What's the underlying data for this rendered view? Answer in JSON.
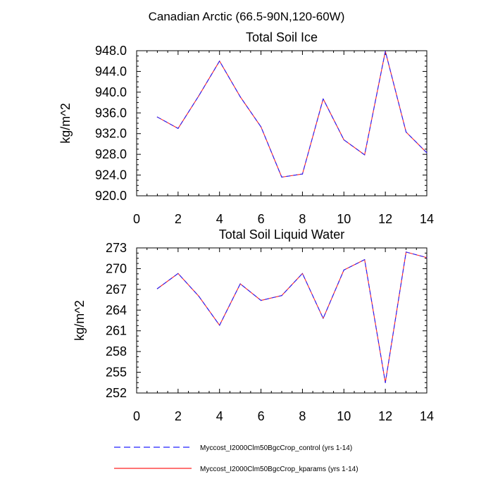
{
  "figure": {
    "title": "Canadian Arctic (66.5-90N,120-60W)"
  },
  "legend": {
    "entries": [
      {
        "label": "Myccost_I2000Clm50BgcCrop_control (yrs 1-14)",
        "color": "#2222ff",
        "style": "dashed"
      },
      {
        "label": "Myccost_I2000Clm50BgcCrop_kparams (yrs 1-14)",
        "color": "#ff2222",
        "style": "solid"
      }
    ]
  },
  "chart_data": [
    {
      "type": "line",
      "title": "Total Soil Ice",
      "xlabel": "",
      "ylabel": "kg/m^2",
      "xlim": [
        0,
        14
      ],
      "ylim": [
        920,
        948
      ],
      "xticks": [
        0,
        2,
        4,
        6,
        8,
        10,
        12,
        14
      ],
      "yticks": [
        920,
        924,
        928,
        932,
        936,
        940,
        944,
        948
      ],
      "ytick_labels": [
        "920.0",
        "924.0",
        "928.0",
        "932.0",
        "936.0",
        "940.0",
        "944.0",
        "948.0"
      ],
      "x": [
        1,
        2,
        3,
        4,
        5,
        6,
        7,
        8,
        9,
        10,
        11,
        12,
        13,
        14
      ],
      "series": [
        {
          "name": "Myccost_I2000Clm50BgcCrop_control (yrs 1-14)",
          "color": "#2222ff",
          "style": "dashed",
          "values": [
            935.2,
            933.0,
            939.3,
            946.0,
            939.1,
            933.3,
            923.6,
            924.2,
            938.7,
            930.8,
            927.9,
            947.9,
            932.3,
            928.3
          ]
        },
        {
          "name": "Myccost_I2000Clm50BgcCrop_kparams (yrs 1-14)",
          "color": "#ff2222",
          "style": "solid",
          "values": [
            935.2,
            933.0,
            939.3,
            946.0,
            939.1,
            933.3,
            923.6,
            924.2,
            938.7,
            930.8,
            927.9,
            947.9,
            932.3,
            928.3
          ]
        }
      ]
    },
    {
      "type": "line",
      "title": "Total Soil Liquid Water",
      "xlabel": "",
      "ylabel": "kg/m^2",
      "xlim": [
        0,
        14
      ],
      "ylim": [
        252,
        273
      ],
      "xticks": [
        0,
        2,
        4,
        6,
        8,
        10,
        12,
        14
      ],
      "yticks": [
        252,
        255,
        258,
        261,
        264,
        267,
        270,
        273
      ],
      "ytick_labels": [
        "252",
        "255",
        "258",
        "261",
        "264",
        "267",
        "270",
        "273"
      ],
      "x": [
        1,
        2,
        3,
        4,
        5,
        6,
        7,
        8,
        9,
        10,
        11,
        12,
        13,
        14
      ],
      "series": [
        {
          "name": "Myccost_I2000Clm50BgcCrop_control (yrs 1-14)",
          "color": "#2222ff",
          "style": "dashed",
          "values": [
            267.1,
            269.3,
            266.0,
            261.8,
            267.8,
            265.4,
            266.1,
            269.3,
            262.8,
            269.8,
            271.3,
            253.5,
            272.4,
            271.6
          ]
        },
        {
          "name": "Myccost_I2000Clm50BgcCrop_kparams (yrs 1-14)",
          "color": "#ff2222",
          "style": "solid",
          "values": [
            267.1,
            269.3,
            266.0,
            261.8,
            267.8,
            265.4,
            266.1,
            269.3,
            262.8,
            269.8,
            271.3,
            253.5,
            272.4,
            271.6
          ]
        }
      ]
    }
  ]
}
